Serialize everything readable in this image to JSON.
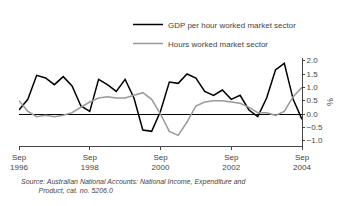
{
  "chart_data": {
    "type": "line",
    "categories": [
      "Sep\n1996",
      null,
      null,
      null,
      null,
      null,
      null,
      null,
      "Sep\n1998",
      null,
      null,
      null,
      null,
      null,
      null,
      null,
      "Sep\n2000",
      null,
      null,
      null,
      null,
      null,
      null,
      null,
      "Sep\n2002",
      null,
      null,
      null,
      null,
      null,
      null,
      null,
      "Sep\n2004"
    ],
    "series": [
      {
        "name": "GDP per hour worked market sector",
        "color": "#000000",
        "values": [
          0.15,
          0.55,
          1.45,
          1.35,
          1.1,
          1.4,
          1.05,
          0.3,
          0.1,
          1.3,
          1.1,
          0.85,
          1.3,
          0.6,
          -0.6,
          -0.65,
          0.1,
          1.2,
          1.15,
          1.5,
          1.35,
          0.85,
          0.7,
          0.9,
          0.55,
          0.7,
          0.15,
          -0.1,
          0.6,
          1.65,
          1.9,
          0.55,
          -0.2
        ]
      },
      {
        "name": "Hours worked market sector",
        "color": "#999999",
        "values": [
          0.5,
          0.1,
          -0.1,
          -0.05,
          -0.1,
          -0.05,
          0.05,
          0.25,
          0.45,
          0.6,
          0.65,
          0.6,
          0.6,
          0.7,
          0.8,
          0.55,
          0.0,
          -0.65,
          -0.8,
          -0.3,
          0.3,
          0.45,
          0.5,
          0.5,
          0.45,
          0.4,
          0.25,
          0.05,
          0.05,
          -0.05,
          0.1,
          0.65,
          1.0
        ]
      }
    ],
    "ylabel": "%",
    "annotations": [
      "Source: Australian National Accounts: National Income, Expenditure and\n         Product, cat. no. 5206.0"
    ],
    "ylim": [
      -1.2,
      2.1
    ],
    "yticks": [
      {
        "value": -1.0,
        "label": "−1.0"
      },
      {
        "value": -0.5,
        "label": "−0.5"
      },
      {
        "value": 0.0,
        "label": "0.0"
      },
      0.5,
      {
        "value": 1.0,
        "label": "1.0"
      },
      1.5,
      {
        "value": 2.0,
        "label": "2.0"
      }
    ],
    "grid": false,
    "legend": "upper right"
  }
}
